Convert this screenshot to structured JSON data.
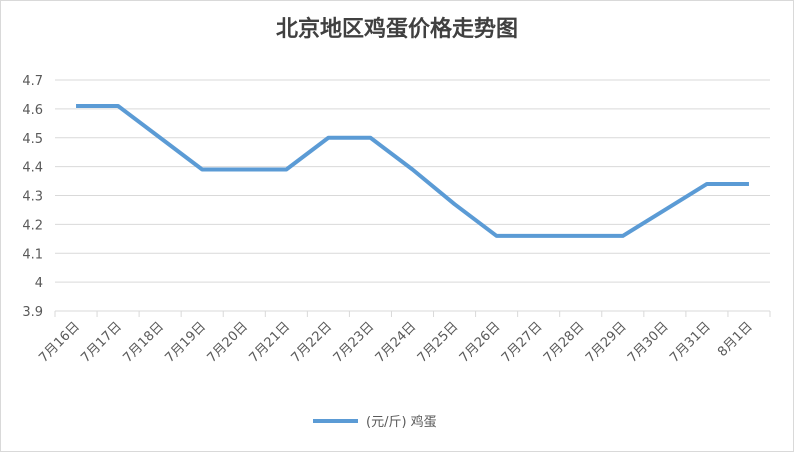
{
  "chart_data": {
    "type": "line",
    "title": "北京地区鸡蛋价格走势图",
    "categories": [
      "7月16日",
      "7月17日",
      "7月18日",
      "7月19日",
      "7月20日",
      "7月21日",
      "7月22日",
      "7月23日",
      "7月24日",
      "7月25日",
      "7月26日",
      "7月27日",
      "7月28日",
      "7月29日",
      "7月30日",
      "7月31日",
      "8月1日"
    ],
    "series": [
      {
        "name": "(元/斤) 鸡蛋",
        "color": "#5b9bd5",
        "values": [
          4.61,
          4.61,
          4.5,
          4.39,
          4.39,
          4.39,
          4.5,
          4.5,
          4.39,
          4.27,
          4.16,
          4.16,
          4.16,
          4.16,
          4.25,
          4.34,
          4.34
        ]
      }
    ],
    "ylim": [
      3.9,
      4.7
    ],
    "yticks": [
      3.9,
      4,
      4.1,
      4.2,
      4.3,
      4.4,
      4.5,
      4.6,
      4.7
    ],
    "grid": true,
    "legend": "bottom"
  }
}
